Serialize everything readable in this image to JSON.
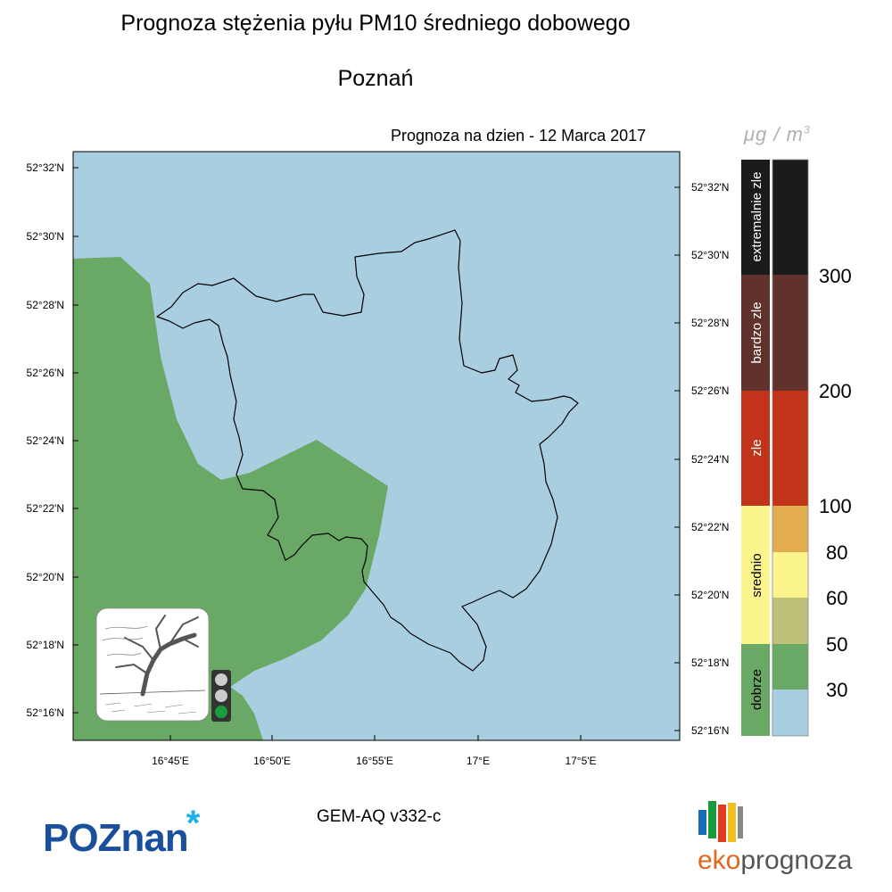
{
  "header": {
    "title": "Prognoza stężenia pyłu PM10 średniego dobowego",
    "subtitle": "Poznań",
    "date_line": "Prognoza na dzien -  12 Marca 2017",
    "units_prefix": "μg / m",
    "units_exp": "3"
  },
  "map": {
    "lat_labels_left": [
      "52°32'N",
      "52°30'N",
      "52°28'N",
      "52°26'N",
      "52°24'N",
      "52°22'N",
      "52°20'N",
      "52°18'N",
      "52°16'N"
    ],
    "lat_labels_right": [
      "52°32'N",
      "52°30'N",
      "52°28'N",
      "52°26'N",
      "52°24'N",
      "52°22'N",
      "52°20'N",
      "52°18'N",
      "52°16'N"
    ],
    "lon_labels": [
      "16°45'E",
      "16°50'E",
      "16°55'E",
      "17°E",
      "17°5'E"
    ],
    "colors": {
      "water_low": "#a9cee0",
      "green_good": "#6aa865",
      "border": "#000000"
    }
  },
  "legend": {
    "bands": [
      {
        "label": "extremalnie zle",
        "color": "#1b1b1b",
        "text_color": "#ffffff"
      },
      {
        "label": "bardzo zle",
        "color": "#61312b",
        "text_color": "#ffffff"
      },
      {
        "label": "zle",
        "color": "#c1341a",
        "text_color": "#ffffff"
      },
      {
        "label": "srednio",
        "color": "#fcf58e",
        "text_color": "#000000"
      },
      {
        "label": "dobrze",
        "color": "#6aa865",
        "text_color": "#000000"
      }
    ],
    "scale_colors": [
      "#1b1b1b",
      "#61312b",
      "#c1341a",
      "#e2ac4f",
      "#fcf58e",
      "#bfc17b",
      "#6aa865",
      "#a9cee0"
    ],
    "thresholds": [
      "300",
      "200",
      "100",
      "80",
      "60",
      "50",
      "30"
    ]
  },
  "footer": {
    "model": "GEM-AQ v332-c",
    "logo_left": "POZnan",
    "logo_left_star": "*",
    "logo_right_a": "eko",
    "logo_right_b": "prognoza"
  }
}
